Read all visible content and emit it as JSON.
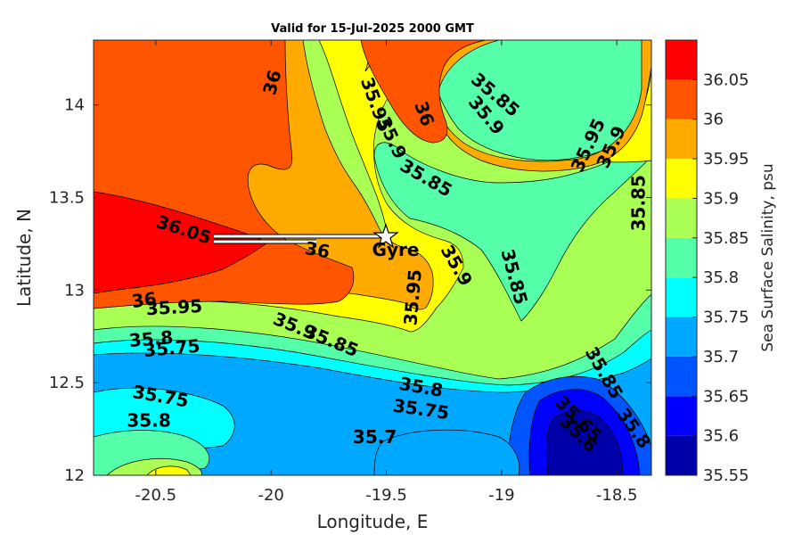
{
  "chart_data": {
    "type": "filled-contour",
    "title": "Valid for 15-Jul-2025 2000 GMT",
    "xlabel": "Longitude, E",
    "ylabel": "Latitude, N",
    "xlim": [
      -20.77,
      -18.35
    ],
    "ylim": [
      12.0,
      14.35
    ],
    "xticks": [
      -20.5,
      -20,
      -19.5,
      -19,
      -18.5
    ],
    "xtick_labels": [
      "-20.5",
      "-20",
      "-19.5",
      "-19",
      "-18.5"
    ],
    "yticks": [
      12,
      12.5,
      13,
      13.5,
      14
    ],
    "ytick_labels": [
      "12",
      "12.5",
      "13",
      "13.5",
      "14"
    ],
    "colorbar": {
      "label": "Sea Surface Salinity, psu",
      "levels": [
        35.55,
        35.6,
        35.65,
        35.7,
        35.75,
        35.8,
        35.85,
        35.9,
        35.95,
        36,
        36.05
      ],
      "tick_labels": [
        "35.55",
        "35.6",
        "35.65",
        "35.7",
        "35.75",
        "35.8",
        "35.85",
        "35.9",
        "35.95",
        "36",
        "36.05"
      ],
      "colors": [
        "#0000AA",
        "#0000FF",
        "#0055FF",
        "#00A8FF",
        "#00FFFF",
        "#55FFAA",
        "#AAFF55",
        "#FFFF00",
        "#FFAA00",
        "#FF5500",
        "#FF0000"
      ]
    },
    "contour_labels": [
      {
        "text": "36",
        "x": -19.99,
        "y": 14.12,
        "rot": -75
      },
      {
        "text": "35.95",
        "x": -19.55,
        "y": 14.0,
        "rot": 70
      },
      {
        "text": "35.9",
        "x": -19.48,
        "y": 13.82,
        "rot": 65
      },
      {
        "text": "36",
        "x": -19.34,
        "y": 13.95,
        "rot": 70
      },
      {
        "text": "35.85",
        "x": -19.03,
        "y": 14.05,
        "rot": 40
      },
      {
        "text": "35.9",
        "x": -19.07,
        "y": 13.94,
        "rot": 50
      },
      {
        "text": "35.85",
        "x": -19.33,
        "y": 13.6,
        "rot": 30
      },
      {
        "text": "35.95",
        "x": -18.62,
        "y": 13.78,
        "rot": -65
      },
      {
        "text": "35.9",
        "x": -18.52,
        "y": 13.77,
        "rot": -65
      },
      {
        "text": "35.85",
        "x": -18.4,
        "y": 13.47,
        "rot": -90
      },
      {
        "text": "36.05",
        "x": -20.38,
        "y": 13.32,
        "rot": 18
      },
      {
        "text": "36",
        "x": -19.8,
        "y": 13.21,
        "rot": 10
      },
      {
        "text": "35.9",
        "x": -19.2,
        "y": 13.13,
        "rot": 60
      },
      {
        "text": "35.85",
        "x": -18.95,
        "y": 13.07,
        "rot": 75
      },
      {
        "text": "35.95",
        "x": -19.38,
        "y": 12.96,
        "rot": -85
      },
      {
        "text": "36",
        "x": -20.55,
        "y": 12.94,
        "rot": -8
      },
      {
        "text": "35.95",
        "x": -20.42,
        "y": 12.9,
        "rot": -3
      },
      {
        "text": "35.9",
        "x": -19.9,
        "y": 12.8,
        "rot": 22
      },
      {
        "text": "35.85",
        "x": -19.74,
        "y": 12.72,
        "rot": 22
      },
      {
        "text": "35.8",
        "x": -20.52,
        "y": 12.73,
        "rot": -5
      },
      {
        "text": "35.75",
        "x": -20.43,
        "y": 12.68,
        "rot": -5
      },
      {
        "text": "35.8",
        "x": -19.35,
        "y": 12.47,
        "rot": 10
      },
      {
        "text": "35.75",
        "x": -19.35,
        "y": 12.35,
        "rot": 8
      },
      {
        "text": "35.75",
        "x": -20.48,
        "y": 12.42,
        "rot": 10
      },
      {
        "text": "35.8",
        "x": -20.53,
        "y": 12.29,
        "rot": 0
      },
      {
        "text": "35.7",
        "x": -19.55,
        "y": 12.2,
        "rot": 0
      },
      {
        "text": "35.85",
        "x": -18.56,
        "y": 12.55,
        "rot": 60
      },
      {
        "text": "35.65",
        "x": -18.67,
        "y": 12.3,
        "rot": 45
      },
      {
        "text": "35.6",
        "x": -18.67,
        "y": 12.22,
        "rot": 45
      },
      {
        "text": "35.8",
        "x": -18.43,
        "y": 12.25,
        "rot": 55
      }
    ],
    "track": {
      "label": "Gyre",
      "x": [
        -20.25,
        -19.48
      ],
      "y": [
        13.27,
        13.27
      ],
      "marker": "star"
    }
  }
}
